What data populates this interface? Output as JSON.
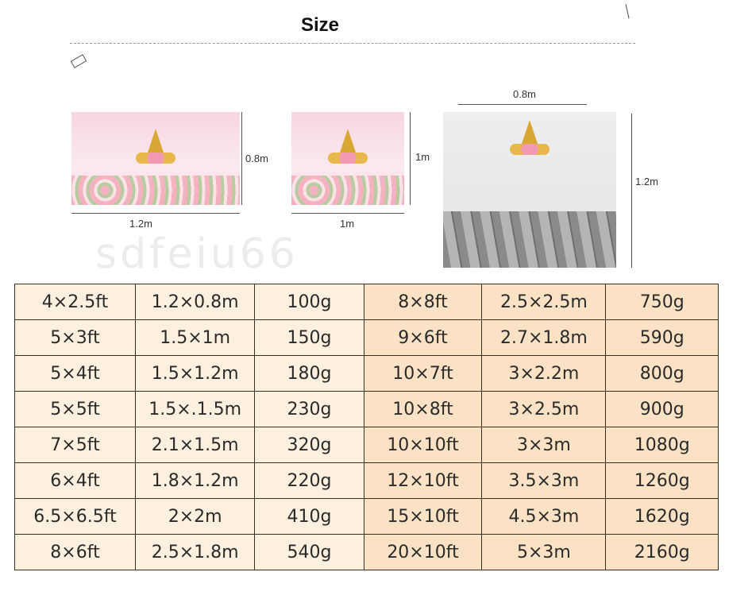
{
  "title": "Size",
  "images": [
    {
      "width_label": "1.2m",
      "height_label": "0.8m"
    },
    {
      "width_label": "1m",
      "height_label": "1m"
    },
    {
      "width_label": "0.8m",
      "height_label": "1.2m"
    }
  ],
  "table": {
    "rows": [
      [
        "4×2.5ft",
        "1.2×0.8m",
        "100g",
        "8×8ft",
        "2.5×2.5m",
        "750g"
      ],
      [
        "5×3ft",
        "1.5×1m",
        "150g",
        "9×6ft",
        "2.7×1.8m",
        "590g"
      ],
      [
        "5×4ft",
        "1.5×1.2m",
        "180g",
        "10×7ft",
        "3×2.2m",
        "800g"
      ],
      [
        "5×5ft",
        "1.5×.1.5m",
        "230g",
        "10×8ft",
        "3×2.5m",
        "900g"
      ],
      [
        "7×5ft",
        "2.1×1.5m",
        "320g",
        "10×10ft",
        "3×3m",
        "1080g"
      ],
      [
        "6×4ft",
        "1.8×1.2m",
        "220g",
        "12×10ft",
        "3.5×3m",
        "1260g"
      ],
      [
        "6.5×6.5ft",
        "2×2m",
        "410g",
        "15×10ft",
        "4.5×3m",
        "1620g"
      ],
      [
        "8×6ft",
        "2.5×1.8m",
        "540g",
        "20×10ft",
        "5×3m",
        "2160g"
      ]
    ]
  },
  "watermark": "sdfeiu66",
  "colors": {
    "left_cells": "#fdf0df",
    "right_cells": "#fbe2c4",
    "border": "#3a3020"
  }
}
